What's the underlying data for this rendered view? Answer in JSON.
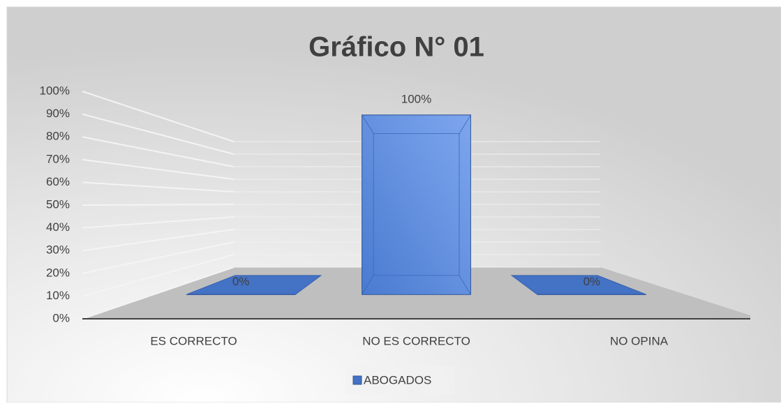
{
  "chart_data": {
    "type": "bar3d",
    "title": "Gráfico N° 01",
    "categories": [
      "ES CORRECTO",
      "NO ES CORRECTO",
      "NO OPINA"
    ],
    "series": [
      {
        "name": "ABOGADOS",
        "color": "#4472c4",
        "values": [
          0,
          100,
          0
        ],
        "value_labels": [
          "0%",
          "100%",
          "0%"
        ]
      }
    ],
    "ylim": [
      0,
      100
    ],
    "yticks": [
      {
        "value": 0,
        "label": "0%"
      },
      {
        "value": 10,
        "label": "10%"
      },
      {
        "value": 20,
        "label": "20%"
      },
      {
        "value": 30,
        "label": "30%"
      },
      {
        "value": 40,
        "label": "40%"
      },
      {
        "value": 50,
        "label": "50%"
      },
      {
        "value": 60,
        "label": "60%"
      },
      {
        "value": 70,
        "label": "70%"
      },
      {
        "value": 80,
        "label": "80%"
      },
      {
        "value": 90,
        "label": "90%"
      },
      {
        "value": 100,
        "label": "100%"
      }
    ],
    "grid": true,
    "legend": "bottom"
  }
}
